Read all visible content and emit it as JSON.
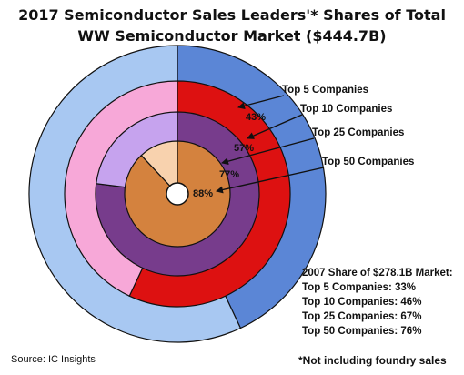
{
  "chart_data": {
    "type": "pie",
    "title_lines": [
      "2017 Semiconductor Sales Leaders'* Shares of Total",
      "WW Semiconductor Market ($444.7B)"
    ],
    "rings": [
      {
        "label": "Top 5 Companies",
        "value_label": "43%",
        "value": 43,
        "color": "#5b86d6",
        "remainder_color": "#a8c8f2"
      },
      {
        "label": "Top 10 Companies",
        "value_label": "57%",
        "value": 57,
        "color": "#dd1111",
        "remainder_color": "#f7a8d8"
      },
      {
        "label": "Top 25 Companies",
        "value_label": "77%",
        "value": 77,
        "color": "#773c8c",
        "remainder_color": "#c6a3ee"
      },
      {
        "label": "Top 50 Companies",
        "value_label": "88%",
        "value": 88,
        "color": "#d4823e",
        "remainder_color": "#f8d2ae"
      }
    ],
    "info_box": {
      "heading": "2007 Share of $278.1B Market:",
      "lines": [
        "Top 5 Companies: 33%",
        "Top 10 Companies: 46%",
        "Top 25 Companies: 67%",
        "Top 50 Companies: 76%"
      ]
    },
    "source": "Source: IC Insights",
    "footnote": "*Not including foundry sales"
  }
}
